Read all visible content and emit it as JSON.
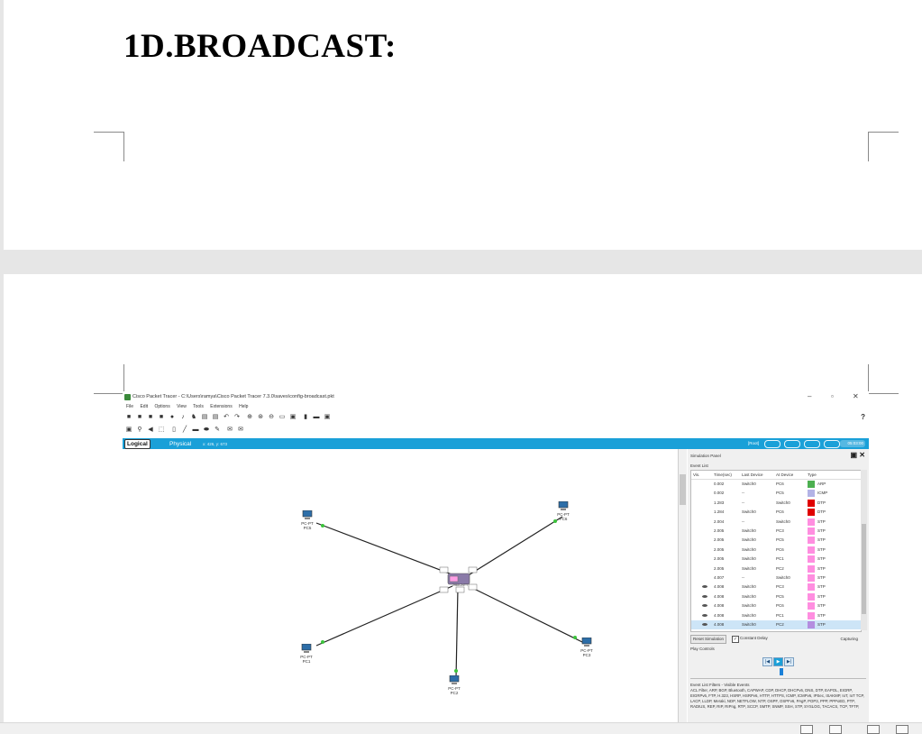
{
  "document": {
    "heading": "1D.BROADCAST:"
  },
  "screenshot": {
    "title": "Cisco Packet Tracer - C:\\Users\\ramya\\Cisco Packet Tracer 7.3.0\\saves\\config-broadcast.pkt",
    "window_controls": {
      "minimize": "–",
      "maximize": "▫",
      "close": "✕"
    },
    "menu": [
      "File",
      "Edit",
      "Options",
      "View",
      "Tools",
      "Extensions",
      "Help"
    ],
    "help_symbol": "?",
    "workspace": {
      "logical_tab": "Logical",
      "physical_tab": "Physical",
      "coords": "x: 426, y: 673",
      "root_label": "[Root]",
      "clock": "05:03:00"
    },
    "topology": {
      "devices": [
        {
          "type": "PC-PT",
          "name": "PC5"
        },
        {
          "type": "PC-PT",
          "name": "PC6"
        },
        {
          "type": "PC-PT",
          "name": "PC1"
        },
        {
          "type": "PC-PT",
          "name": "PC2"
        },
        {
          "type": "PC-PT",
          "name": "PC3"
        }
      ],
      "switch_label": "2960-24TT",
      "link_color": "#222222",
      "port_color": "#3cc43c"
    },
    "simulation_panel": {
      "title": "Simulation Panel",
      "event_list_label": "Event List",
      "columns": [
        "Vis.",
        "Time(sec)",
        "Last Device",
        "At Device",
        "Type"
      ],
      "events": [
        {
          "vis": "",
          "time": "0.002",
          "last": "Switch0",
          "at": "PC6",
          "type": "ARP",
          "color": "#4caf50"
        },
        {
          "vis": "",
          "time": "0.002",
          "last": "--",
          "at": "PC5",
          "type": "ICMP",
          "color": "#b3b3e6"
        },
        {
          "vis": "",
          "time": "1.283",
          "last": "--",
          "at": "Switch0",
          "type": "DTP",
          "color": "#e00000"
        },
        {
          "vis": "",
          "time": "1.284",
          "last": "Switch0",
          "at": "PC6",
          "type": "DTP",
          "color": "#e00000"
        },
        {
          "vis": "",
          "time": "2.004",
          "last": "--",
          "at": "Switch0",
          "type": "STP",
          "color": "#ff8ee0"
        },
        {
          "vis": "",
          "time": "2.005",
          "last": "Switch0",
          "at": "PC3",
          "type": "STP",
          "color": "#ff8ee0"
        },
        {
          "vis": "",
          "time": "2.005",
          "last": "Switch0",
          "at": "PC5",
          "type": "STP",
          "color": "#ff8ee0"
        },
        {
          "vis": "",
          "time": "2.005",
          "last": "Switch0",
          "at": "PC6",
          "type": "STP",
          "color": "#ff8ee0"
        },
        {
          "vis": "",
          "time": "2.005",
          "last": "Switch0",
          "at": "PC1",
          "type": "STP",
          "color": "#ff8ee0"
        },
        {
          "vis": "",
          "time": "2.005",
          "last": "Switch0",
          "at": "PC2",
          "type": "STP",
          "color": "#ff8ee0"
        },
        {
          "vis": "",
          "time": "4.007",
          "last": "--",
          "at": "Switch0",
          "type": "STP",
          "color": "#ff8ee0"
        },
        {
          "vis": "eye",
          "time": "4.008",
          "last": "Switch0",
          "at": "PC3",
          "type": "STP",
          "color": "#ff8ee0"
        },
        {
          "vis": "eye",
          "time": "4.008",
          "last": "Switch0",
          "at": "PC5",
          "type": "STP",
          "color": "#ff8ee0"
        },
        {
          "vis": "eye",
          "time": "4.008",
          "last": "Switch0",
          "at": "PC6",
          "type": "STP",
          "color": "#ff8ee0"
        },
        {
          "vis": "eye",
          "time": "4.008",
          "last": "Switch0",
          "at": "PC1",
          "type": "STP",
          "color": "#ff8ee0"
        },
        {
          "vis": "eye",
          "time": "4.008",
          "last": "Switch0",
          "at": "PC2",
          "type": "STP",
          "color": "#b48ee0",
          "selected": true
        }
      ],
      "reset_button": "Reset Simulation",
      "constant_delay": "Constant Delay",
      "capturing": "Capturing",
      "play_controls_label": "Play Controls",
      "play_buttons": [
        "|◀",
        "▶",
        "▶|"
      ],
      "filters_label": "Event List Filters - Visible Events",
      "filters_text": "ACL Filter, ARP, BGP, Bluetooth, CAPWAP, CDP, DHCP, DHCPv6, DNS, DTP, EAPOL, EIGRP, EIGRPv6, FTP, H.323, HSRP, HSRPv6, HTTP, HTTPS, ICMP, ICMPv6, IPSec, ISAKMP, IoT, IoT TCP, LACP, LLDP, Meraki, NDP, NETFLOW, NTP, OSPF, OSPFv6, PAgP, POP3, PPP, PPPoED, PTP, RADIUS, REP, RIP, RIPng, RTP, SCCP, SMTP, SNMP, SSH, STP, SYSLOG, TACACS, TCP, TFTP,"
    }
  }
}
